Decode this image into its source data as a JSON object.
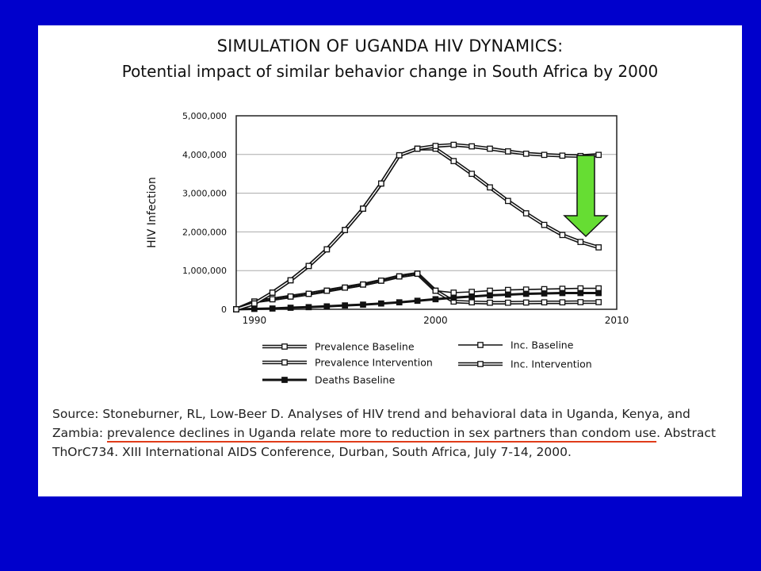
{
  "slide": {
    "title_line1": "SIMULATION OF UGANDA HIV DYNAMICS:",
    "title_line2": "Potential impact of similar behavior change in South Africa by 2000",
    "source_pre": "Source: Stoneburner, RL, Low-Beer D. Analyses of HIV trend and behavioral data in Uganda, Kenya, and Zambia: ",
    "source_underlined": "prevalence declines in Uganda relate more to reduction in sex partners than condom use",
    "source_post": ". Abstract ThOrC734. XIII International AIDS Conference, Durban, South Africa, July 7-14, 2000.",
    "arrow_color": "#66dd33",
    "background_color": "#0000cc",
    "underline_color": "#e03c1a"
  },
  "chart_data": {
    "type": "line",
    "title": "",
    "xlabel": "",
    "ylabel": "HIV Infection",
    "xlim": [
      1989,
      2010
    ],
    "ylim": [
      0,
      5000000
    ],
    "x_ticks": [
      1990,
      2000,
      2010
    ],
    "x_tick_labels": [
      "1990",
      "2000",
      "2010"
    ],
    "y_ticks": [
      0,
      1000000,
      2000000,
      3000000,
      4000000,
      5000000
    ],
    "y_tick_labels": [
      "0",
      "1,000,000",
      "2,000,000",
      "3,000,000",
      "4,000,000",
      "5,000,000"
    ],
    "grid": true,
    "x": [
      1989,
      1990,
      1991,
      1992,
      1993,
      1994,
      1995,
      1996,
      1997,
      1998,
      1999,
      2000,
      2001,
      2002,
      2003,
      2004,
      2005,
      2006,
      2007,
      2008,
      2009
    ],
    "series": [
      {
        "name": "Prevalence Baseline",
        "values": [
          0,
          150000,
          430000,
          750000,
          1120000,
          1550000,
          2050000,
          2600000,
          3250000,
          3980000,
          4150000,
          4220000,
          4250000,
          4210000,
          4150000,
          4080000,
          4020000,
          3990000,
          3970000,
          3960000,
          3990000
        ],
        "marker": "open-square",
        "style": "double"
      },
      {
        "name": "Prevalence Intervention",
        "values": [
          0,
          150000,
          430000,
          750000,
          1120000,
          1550000,
          2050000,
          2600000,
          3250000,
          3980000,
          4150000,
          4150000,
          3830000,
          3500000,
          3150000,
          2800000,
          2480000,
          2180000,
          1920000,
          1740000,
          1600000
        ],
        "marker": "open-square",
        "style": "double"
      },
      {
        "name": "Deaths Baseline",
        "values": [
          0,
          10000,
          20000,
          40000,
          55000,
          75000,
          100000,
          120000,
          150000,
          180000,
          220000,
          260000,
          300000,
          330000,
          360000,
          380000,
          400000,
          410000,
          420000,
          420000,
          420000
        ],
        "marker": "filled-square",
        "style": "solid"
      },
      {
        "name": "Inc. Baseline",
        "values": [
          0,
          200000,
          260000,
          330000,
          400000,
          480000,
          560000,
          640000,
          740000,
          850000,
          920000,
          480000,
          430000,
          450000,
          480000,
          500000,
          510000,
          520000,
          530000,
          540000,
          540000
        ],
        "marker": "open-square",
        "style": "single"
      },
      {
        "name": "Inc. Intervention",
        "values": [
          0,
          200000,
          260000,
          330000,
          400000,
          480000,
          560000,
          640000,
          740000,
          850000,
          920000,
          480000,
          200000,
          180000,
          170000,
          170000,
          175000,
          180000,
          180000,
          185000,
          185000
        ],
        "marker": "open-square",
        "style": "double"
      }
    ],
    "legend": [
      "Prevalence Baseline",
      "Inc. Baseline",
      "Prevalence Intervention",
      "Inc. Intervention",
      "Deaths Baseline"
    ],
    "legend_placement": "bottom"
  }
}
